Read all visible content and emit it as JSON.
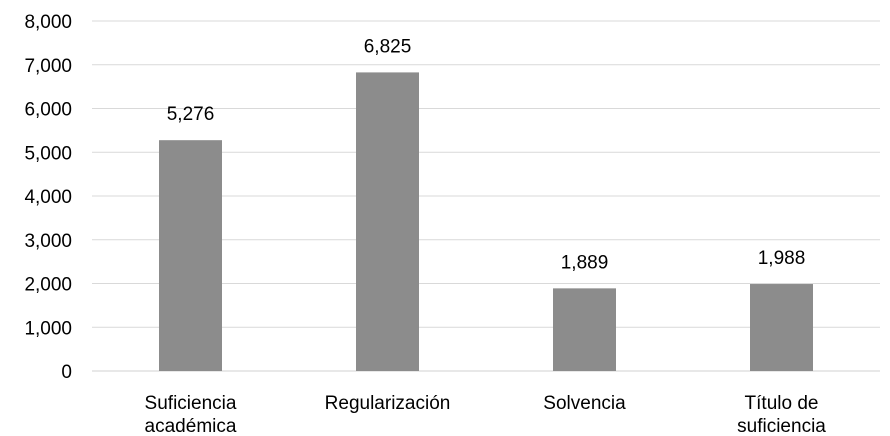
{
  "chart_data": {
    "type": "bar",
    "categories": [
      [
        "Suficiencia",
        "académica"
      ],
      [
        "Regularización"
      ],
      [
        "Solvencia"
      ],
      [
        "Título de",
        "suficiencia"
      ]
    ],
    "values": [
      5276,
      6825,
      1889,
      1988
    ],
    "data_labels": [
      "5,276",
      "6,825",
      "1,889",
      "1,988"
    ],
    "y_ticks": [
      0,
      1000,
      2000,
      3000,
      4000,
      5000,
      6000,
      7000,
      8000
    ],
    "y_tick_labels": [
      "0",
      "1,000",
      "2,000",
      "3,000",
      "4,000",
      "5,000",
      "6,000",
      "7,000",
      "8,000"
    ],
    "ylim": [
      0,
      8000
    ],
    "title": "",
    "xlabel": "",
    "ylabel": "",
    "grid": true,
    "legend": "none",
    "bar_color": "#8c8c8c",
    "grid_color": "#d9d9d9"
  }
}
